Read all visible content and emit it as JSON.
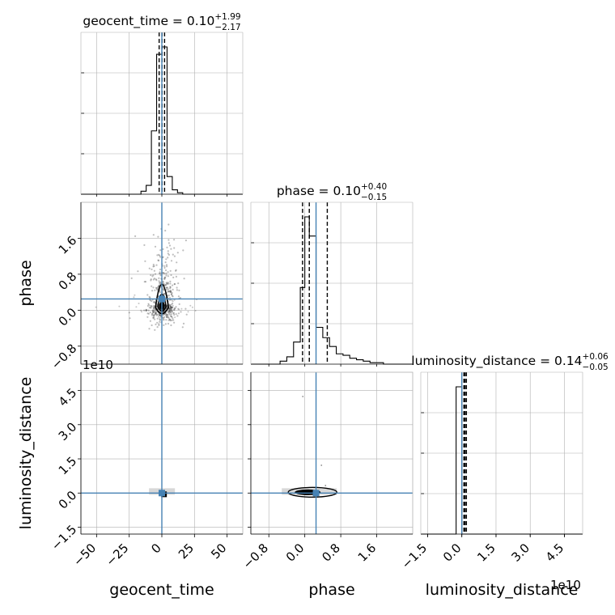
{
  "chart_data": {
    "type": "corner",
    "parameters": [
      "geocent_time",
      "phase",
      "luminosity_distance"
    ],
    "axis_labels": [
      "geocent_time",
      "phase",
      "luminosity_distance"
    ],
    "offset_labels": {
      "phase_row_luminosity_col": "1e10",
      "luminosity_bottom": "1e10"
    },
    "titles": [
      {
        "param": "geocent_time",
        "text": "geocent_time = 0.10",
        "plus": "+1.99",
        "minus": "−2.17"
      },
      {
        "param": "phase",
        "text": "phase = 0.10",
        "plus": "+0.40",
        "minus": "−0.15"
      },
      {
        "param": "luminosity_distance",
        "text": "luminosity_distance = 0.14",
        "plus": "+0.06",
        "minus": "−0.05"
      }
    ],
    "ranges": {
      "geocent_time": [
        -62,
        62
      ],
      "phase": [
        -1.2,
        2.4
      ],
      "luminosity_distance": [
        -1.8,
        5.3
      ]
    },
    "ticks": {
      "geocent_time": {
        "values": [
          -50,
          -25,
          0,
          25,
          50
        ],
        "labels": [
          "−50",
          "−25",
          "0",
          "25",
          "50"
        ]
      },
      "phase": {
        "values": [
          -0.8,
          0.0,
          0.8,
          1.6
        ],
        "labels": [
          "−0.8",
          "0.0",
          "0.8",
          "1.6"
        ]
      },
      "luminosity_distance": {
        "values": [
          -1.5,
          0.0,
          1.5,
          3.0,
          4.5
        ],
        "labels": [
          "−1.5",
          "0.0",
          "1.5",
          "3.0",
          "4.5"
        ]
      }
    },
    "truths": {
      "geocent_time": 0.0,
      "phase": 0.25,
      "luminosity_distance": 0.0
    },
    "quantiles": {
      "geocent_time": [
        -2.07,
        0.1,
        2.09
      ],
      "phase": [
        -0.05,
        0.1,
        0.5
      ],
      "luminosity_distance": [
        0.09,
        0.14,
        0.2
      ]
    },
    "histograms": {
      "geocent_time": {
        "edges": [
          -16,
          -12,
          -8,
          -4,
          0,
          4,
          8,
          12,
          16,
          20
        ],
        "counts": [
          0.02,
          0.06,
          0.43,
          0.95,
          1.0,
          0.12,
          0.03,
          0.01,
          0.0
        ]
      },
      "phase": {
        "edges": [
          -0.55,
          -0.4,
          -0.25,
          -0.1,
          0.0,
          0.1,
          0.25,
          0.4,
          0.55,
          0.7,
          0.85,
          1.0,
          1.15,
          1.3,
          1.45,
          1.6,
          1.75
        ],
        "counts": [
          0.02,
          0.05,
          0.15,
          0.52,
          1.0,
          0.87,
          0.25,
          0.18,
          0.12,
          0.07,
          0.06,
          0.04,
          0.03,
          0.02,
          0.01,
          0.01
        ]
      },
      "luminosity_distance": {
        "edges": [
          -0.25,
          0.0,
          0.25
        ],
        "counts": [
          1.0,
          0.0
        ]
      }
    },
    "grid": true
  }
}
